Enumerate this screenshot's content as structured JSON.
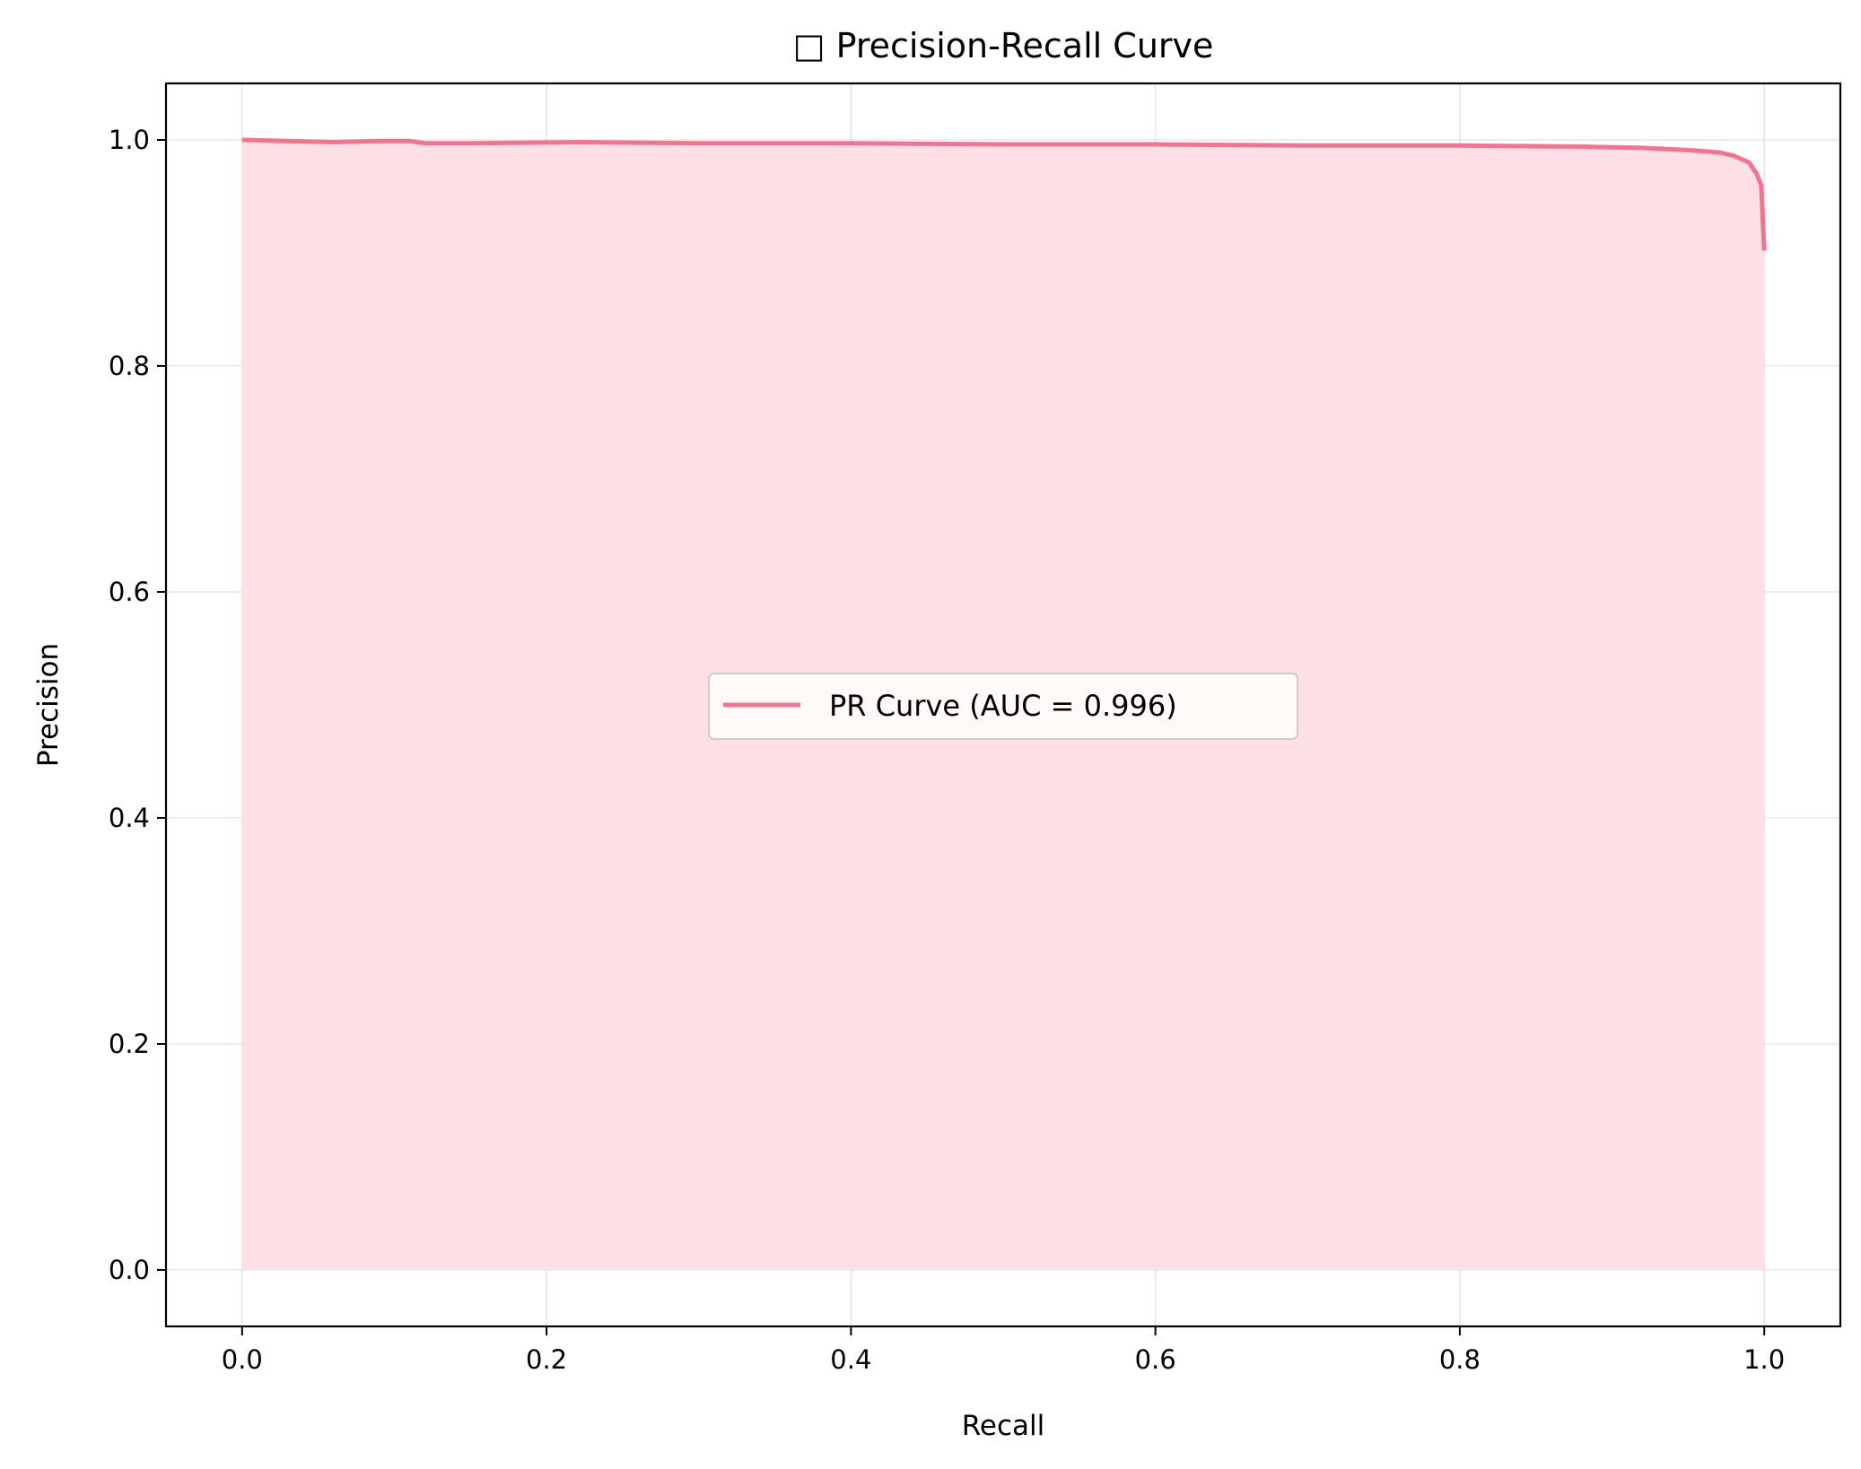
{
  "chart_data": {
    "type": "area",
    "title": "□ Precision-Recall Curve",
    "xlabel": "Recall",
    "ylabel": "Precision",
    "xlim": [
      -0.05,
      1.05
    ],
    "ylim": [
      -0.05,
      1.05
    ],
    "xticks": [
      0.0,
      0.2,
      0.4,
      0.6,
      0.8,
      1.0
    ],
    "yticks": [
      0.0,
      0.2,
      0.4,
      0.6,
      0.8,
      1.0
    ],
    "xtick_labels": [
      "0.0",
      "0.2",
      "0.4",
      "0.6",
      "0.8",
      "1.0"
    ],
    "ytick_labels": [
      "0.0",
      "0.2",
      "0.4",
      "0.6",
      "0.8",
      "1.0"
    ],
    "grid": true,
    "legend_position": "center",
    "series": [
      {
        "name": "PR Curve (AUC = 0.996)",
        "color": "#f07590",
        "fill_color": "#fde0e6",
        "x": [
          0.0,
          0.03,
          0.06,
          0.09,
          0.11,
          0.12,
          0.15,
          0.22,
          0.3,
          0.4,
          0.5,
          0.6,
          0.7,
          0.8,
          0.88,
          0.92,
          0.95,
          0.97,
          0.98,
          0.99,
          0.995,
          0.998,
          0.999,
          1.0
        ],
        "y": [
          1.0,
          0.999,
          0.998,
          0.999,
          0.999,
          0.997,
          0.997,
          0.998,
          0.997,
          0.997,
          0.996,
          0.996,
          0.995,
          0.995,
          0.994,
          0.993,
          0.991,
          0.989,
          0.986,
          0.98,
          0.97,
          0.96,
          0.93,
          0.902
        ]
      }
    ]
  }
}
